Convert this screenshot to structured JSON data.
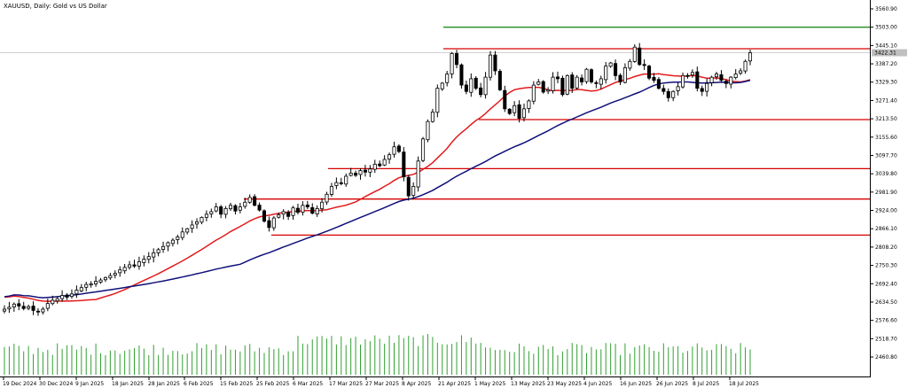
{
  "window": {
    "title": "XAUUSD, Daily:  Gold vs US Dollar"
  },
  "chart_data": {
    "type": "candlestick",
    "symbol": "XAUUSD",
    "timeframe": "Daily",
    "title": "XAUUSD, Daily:  Gold vs US Dollar",
    "current_price_label": "3422.31",
    "ylim": [
      2430,
      3590
    ],
    "y_ticks": [
      "3560.90",
      "3503.00",
      "3445.10",
      "3387.20",
      "3329.30",
      "3271.40",
      "3213.50",
      "3155.60",
      "3097.70",
      "3039.80",
      "2981.90",
      "2924.00",
      "2866.10",
      "2808.20",
      "2750.30",
      "2692.40",
      "2634.50",
      "2576.60",
      "2518.70",
      "2460.80"
    ],
    "x_ticks": [
      "19 Dec 2024",
      "30 Dec 2024",
      "9 Jan 2025",
      "18 Jan 2025",
      "28 Jan 2025",
      "6 Feb 2025",
      "15 Feb 2025",
      "25 Feb 2025",
      "6 Mar 2025",
      "17 Mar 2025",
      "27 Mar 2025",
      "8 Apr 2025",
      "21 Apr 2025",
      "1 May 2025",
      "13 May 2025",
      "23 May 2025",
      "4 Jun 2025",
      "16 Jun 2025",
      "26 Jun 2025",
      "8 Jul 2025",
      "18 Jul 2025"
    ],
    "candles_close": [
      2612,
      2618,
      2628,
      2622,
      2614,
      2620,
      2608,
      2604,
      2612,
      2630,
      2640,
      2645,
      2655,
      2650,
      2660,
      2672,
      2680,
      2690,
      2692,
      2700,
      2704,
      2712,
      2718,
      2725,
      2736,
      2744,
      2752,
      2748,
      2762,
      2770,
      2778,
      2790,
      2800,
      2810,
      2822,
      2830,
      2840,
      2856,
      2866,
      2878,
      2888,
      2902,
      2912,
      2920,
      2935,
      2912,
      2930,
      2940,
      2922,
      2935,
      2950,
      2965,
      2940,
      2925,
      2890,
      2870,
      2900,
      2910,
      2920,
      2905,
      2932,
      2918,
      2940,
      2935,
      2915,
      2930,
      2950,
      2975,
      3000,
      3012,
      3010,
      3032,
      3042,
      3035,
      3050,
      3045,
      3055,
      3070,
      3065,
      3085,
      3100,
      3125,
      3110,
      3030,
      2970,
      3000,
      3080,
      3150,
      3205,
      3235,
      3310,
      3326,
      3355,
      3420,
      3385,
      3320,
      3300,
      3340,
      3310,
      3290,
      3345,
      3415,
      3365,
      3305,
      3245,
      3230,
      3255,
      3215,
      3245,
      3270,
      3320,
      3330,
      3298,
      3305,
      3345,
      3340,
      3290,
      3350,
      3310,
      3345,
      3330,
      3370,
      3330,
      3325,
      3340,
      3380,
      3390,
      3350,
      3330,
      3375,
      3395,
      3440,
      3385,
      3382,
      3342,
      3335,
      3310,
      3300,
      3280,
      3300,
      3315,
      3350,
      3350,
      3360,
      3310,
      3300,
      3325,
      3345,
      3355,
      3335,
      3325,
      3345,
      3355,
      3365,
      3395,
      3422
    ],
    "moving_averages": [
      {
        "color": "#e31a1c",
        "period": 20
      },
      {
        "color": "#10107a",
        "period": 50
      }
    ],
    "level_lines": [
      {
        "price": 3503.0,
        "color": "#228b22"
      },
      {
        "price": 3435.0,
        "color": "#d60000"
      },
      {
        "price": 3211.0,
        "color": "#d60000"
      },
      {
        "price": 3056.0,
        "color": "#d60000"
      },
      {
        "price": 2960.0,
        "color": "#d60000"
      },
      {
        "price": 2846.0,
        "color": "#d60000"
      }
    ],
    "grid": false,
    "colors": {
      "bull": "#ffffff",
      "bear": "#000000",
      "volume": "#32a032",
      "crosshair": "#c0c0c0"
    }
  }
}
